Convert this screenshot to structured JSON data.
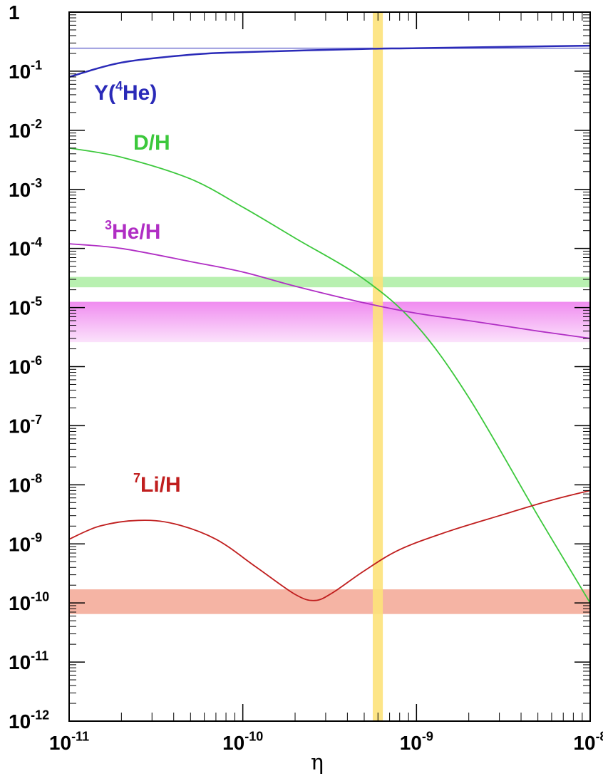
{
  "chart_data": {
    "type": "line",
    "xlabel": "η",
    "ylabel": "",
    "x_scale": "log",
    "y_scale": "log",
    "xlim": [
      1e-11,
      1e-08
    ],
    "ylim": [
      1e-12,
      1
    ],
    "x_ticks": [
      {
        "value": 1e-11,
        "base": "10",
        "exp": "-11"
      },
      {
        "value": 1e-10,
        "base": "10",
        "exp": "-10"
      },
      {
        "value": 1e-09,
        "base": "10",
        "exp": "-9"
      },
      {
        "value": 1e-08,
        "base": "10",
        "exp": "-8"
      }
    ],
    "y_ticks": [
      {
        "value": 1,
        "base": "1",
        "exp": ""
      },
      {
        "value": 0.1,
        "base": "10",
        "exp": "-1"
      },
      {
        "value": 0.01,
        "base": "10",
        "exp": "-2"
      },
      {
        "value": 0.001,
        "base": "10",
        "exp": "-3"
      },
      {
        "value": 0.0001,
        "base": "10",
        "exp": "-4"
      },
      {
        "value": 1e-05,
        "base": "10",
        "exp": "-5"
      },
      {
        "value": 1e-06,
        "base": "10",
        "exp": "-6"
      },
      {
        "value": 1e-07,
        "base": "10",
        "exp": "-7"
      },
      {
        "value": 1e-08,
        "base": "10",
        "exp": "-8"
      },
      {
        "value": 1e-09,
        "base": "10",
        "exp": "-9"
      },
      {
        "value": 1e-10,
        "base": "10",
        "exp": "-10"
      },
      {
        "value": 1e-11,
        "base": "10",
        "exp": "-11"
      },
      {
        "value": 1e-12,
        "base": "10",
        "exp": "-12"
      }
    ],
    "grid": false,
    "series": [
      {
        "key": "he4",
        "label_parts": [
          "Y(",
          "4",
          "He)"
        ],
        "color": "#2a2ab8",
        "x": [
          1e-11,
          2e-11,
          5e-11,
          1e-10,
          5.6e-10,
          1e-09,
          1e-08
        ],
        "y": [
          0.08,
          0.14,
          0.19,
          0.21,
          0.24,
          0.245,
          0.27
        ]
      },
      {
        "key": "d",
        "label_parts": [
          "D/H"
        ],
        "color": "#3cc83c",
        "x": [
          1e-11,
          2e-11,
          5e-11,
          1e-10,
          2e-10,
          5e-10,
          1e-09,
          2e-09,
          5e-09,
          1e-08
        ],
        "y": [
          0.005,
          0.0035,
          0.0015,
          0.0005,
          0.00015,
          3e-05,
          5e-06,
          3e-07,
          3e-09,
          1e-10
        ]
      },
      {
        "key": "he3",
        "label_parts": [
          "3",
          "He/H"
        ],
        "color": "#b02ec4",
        "x": [
          1e-11,
          2e-11,
          5e-11,
          1e-10,
          2e-10,
          5e-10,
          1e-09,
          2e-09,
          5e-09,
          1e-08
        ],
        "y": [
          0.00012,
          0.0001,
          6e-05,
          4e-05,
          2.3e-05,
          1.2e-05,
          8e-06,
          6e-06,
          4e-06,
          3e-06
        ]
      },
      {
        "key": "li7",
        "label_parts": [
          "7",
          "Li/H"
        ],
        "color": "#c01e1e",
        "x": [
          1e-11,
          1.5e-11,
          2.5e-11,
          4e-11,
          7e-11,
          1.2e-10,
          2e-10,
          2.6e-10,
          3.3e-10,
          5e-10,
          8e-10,
          1.5e-09,
          3e-09,
          6e-09,
          1e-08
        ],
        "y": [
          1.2e-09,
          2e-09,
          2.5e-09,
          2.2e-09,
          1.2e-09,
          4e-10,
          1.4e-10,
          1.1e-10,
          1.5e-10,
          3.5e-10,
          8e-10,
          1.6e-09,
          3e-09,
          5.5e-09,
          8e-09
        ]
      }
    ],
    "bands": [
      {
        "key": "he4",
        "orientation": "horizontal",
        "range": [
          0.245,
          0.251
        ],
        "color": "#9999dd"
      },
      {
        "key": "d",
        "orientation": "horizontal",
        "range": [
          2.2e-05,
          3.3e-05
        ],
        "color": "#b8f0b0"
      },
      {
        "key": "he3",
        "orientation": "horizontal",
        "range": [
          2.6e-06,
          1.25e-05
        ],
        "color": "#f08cf0"
      },
      {
        "key": "li7",
        "orientation": "horizontal",
        "range": [
          6.5e-11,
          1.7e-10
        ],
        "color": "#f5b4a4"
      },
      {
        "key": "eta",
        "orientation": "vertical",
        "range": [
          5.6e-10,
          6.4e-10
        ],
        "color": "#fde27a"
      }
    ]
  }
}
